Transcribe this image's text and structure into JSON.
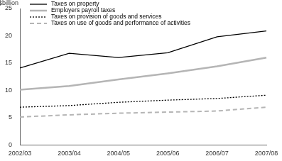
{
  "chart_data": {
    "type": "line",
    "ylabel": "$billion",
    "categories": [
      "2002/03",
      "2003/04",
      "2004/05",
      "2005/06",
      "2006/07",
      "2007/08"
    ],
    "series": [
      {
        "name": "Taxes on property",
        "color": "#000000",
        "line_style": "solid",
        "values": [
          14.1,
          16.8,
          16.0,
          16.9,
          19.8,
          20.9
        ]
      },
      {
        "name": "Employers payroll taxes",
        "color": "#b5b5b5",
        "line_style": "solid",
        "values": [
          10.1,
          10.8,
          12.0,
          13.1,
          14.4,
          16.0
        ]
      },
      {
        "name": "Taxes on provision of goods and services",
        "color": "#000000",
        "line_style": "dotted",
        "values": [
          6.9,
          7.2,
          7.8,
          8.2,
          8.5,
          9.1
        ]
      },
      {
        "name": "Taxes on use of goods and performance of activities",
        "color": "#b5b5b5",
        "line_style": "dashed",
        "values": [
          5.1,
          5.5,
          5.8,
          6.0,
          6.2,
          6.9
        ]
      }
    ],
    "ylim": [
      0,
      25
    ],
    "yticks": [
      0,
      5,
      10,
      15,
      20,
      25
    ],
    "grid": false,
    "legend": "top-left"
  }
}
